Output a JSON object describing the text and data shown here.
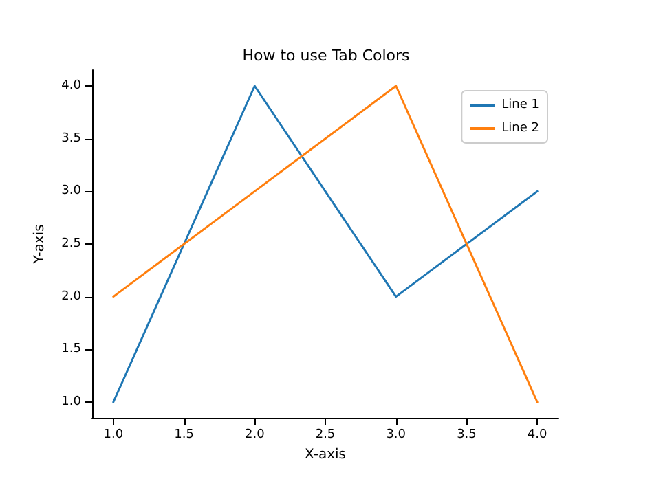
{
  "chart_data": {
    "type": "line",
    "title": "How to use Tab Colors",
    "xlabel": "X-axis",
    "ylabel": "Y-axis",
    "x": [
      1,
      2,
      3,
      4
    ],
    "series": [
      {
        "name": "Line 1",
        "color": "#1f77b4",
        "values": [
          1,
          4,
          2,
          3
        ]
      },
      {
        "name": "Line 2",
        "color": "#ff7f0e",
        "values": [
          2,
          3,
          4,
          1
        ]
      }
    ],
    "xlim": [
      0.85,
      4.15
    ],
    "ylim": [
      0.85,
      4.15
    ],
    "xticks": [
      {
        "value": 1,
        "label": "1.0"
      },
      {
        "value": 1.5,
        "label": "1.5"
      },
      {
        "value": 2,
        "label": "2.0"
      },
      {
        "value": 2.5,
        "label": "2.5"
      },
      {
        "value": 3,
        "label": "3.0"
      },
      {
        "value": 3.5,
        "label": "3.5"
      },
      {
        "value": 4,
        "label": "4.0"
      }
    ],
    "yticks": [
      {
        "value": 1,
        "label": "1.0"
      },
      {
        "value": 1.5,
        "label": "1.5"
      },
      {
        "value": 2,
        "label": "2.0"
      },
      {
        "value": 2.5,
        "label": "2.5"
      },
      {
        "value": 3,
        "label": "3.0"
      },
      {
        "value": 3.5,
        "label": "3.5"
      },
      {
        "value": 4,
        "label": "4.0"
      }
    ],
    "grid": false,
    "legend": "top right",
    "marker": "none",
    "line_style": "solid"
  }
}
